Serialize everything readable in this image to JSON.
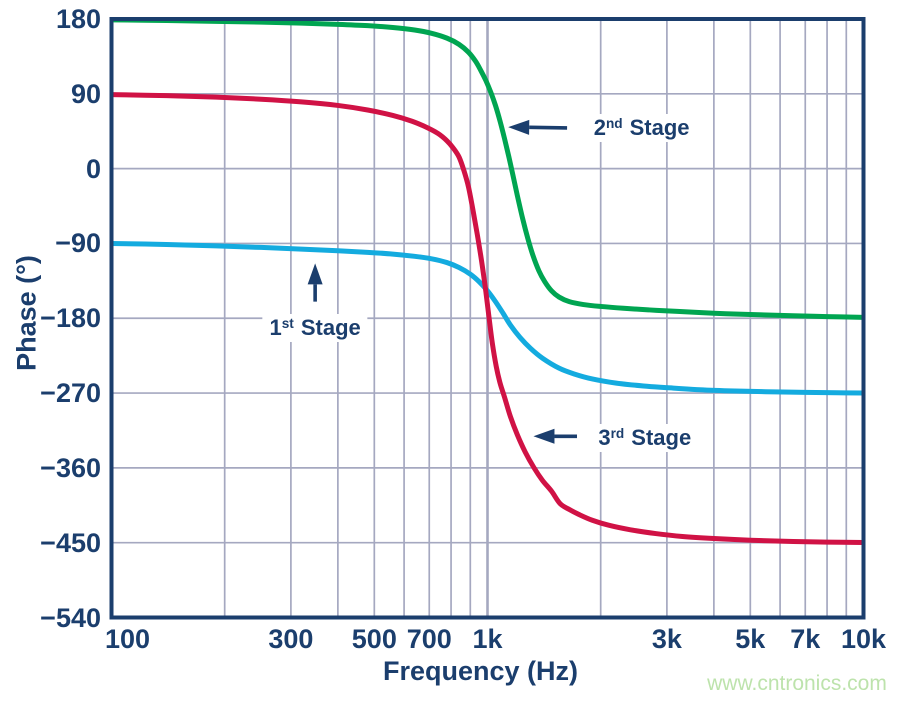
{
  "chart_data": {
    "type": "line",
    "title": "",
    "xlabel": "Frequency (Hz)",
    "ylabel": "Phase (°)",
    "x_scale": "log",
    "x_range": [
      100,
      10000
    ],
    "y_range": [
      -540,
      180
    ],
    "grid": true,
    "legend_position": "none",
    "x_ticks": [
      {
        "value": 100,
        "label": "100",
        "dx": 16
      },
      {
        "value": 300,
        "label": "300",
        "dx": 0
      },
      {
        "value": 500,
        "label": "500",
        "dx": 0
      },
      {
        "value": 700,
        "label": "700",
        "dx": 0
      },
      {
        "value": 1000,
        "label": "1k",
        "dx": 0
      },
      {
        "value": 3000,
        "label": "3k",
        "dx": 0
      },
      {
        "value": 5000,
        "label": "5k",
        "dx": 0
      },
      {
        "value": 7000,
        "label": "7k",
        "dx": 0
      },
      {
        "value": 10000,
        "label": "10k",
        "dx": 0
      }
    ],
    "y_ticks": [
      {
        "value": 180,
        "label": "180"
      },
      {
        "value": 90,
        "label": "90"
      },
      {
        "value": 0,
        "label": "0"
      },
      {
        "value": -90,
        "label": "−90"
      },
      {
        "value": -180,
        "label": "−180"
      },
      {
        "value": -270,
        "label": "−270"
      },
      {
        "value": -360,
        "label": "−360"
      },
      {
        "value": -450,
        "label": "−450"
      },
      {
        "value": -540,
        "label": "−540"
      }
    ],
    "x_grid_minor": [
      200,
      300,
      400,
      500,
      600,
      700,
      800,
      900,
      2000,
      3000,
      4000,
      5000,
      6000,
      7000,
      8000,
      9000
    ],
    "x_grid_major": [
      1000
    ],
    "y_grid": [
      90,
      0,
      -90,
      -180,
      -270,
      -360,
      -450
    ],
    "colors": {
      "axis": "#1B3E6D",
      "grid": "#A5A8C0",
      "stage1": "#14ABDF",
      "stage2": "#00A551",
      "stage3": "#D01245"
    },
    "series": [
      {
        "name": "1st Stage",
        "color": "#14ABDF",
        "points": [
          [
            100,
            -90
          ],
          [
            140,
            -91.3
          ],
          [
            190,
            -93
          ],
          [
            250,
            -94.8
          ],
          [
            320,
            -96.8
          ],
          [
            400,
            -98.8
          ],
          [
            480,
            -100.7
          ],
          [
            560,
            -102.8
          ],
          [
            640,
            -105.5
          ],
          [
            710,
            -108.5
          ],
          [
            780,
            -113
          ],
          [
            840,
            -119
          ],
          [
            900,
            -127
          ],
          [
            950,
            -136
          ],
          [
            1000,
            -147
          ],
          [
            1050,
            -160
          ],
          [
            1100,
            -174
          ],
          [
            1150,
            -188
          ],
          [
            1220,
            -203
          ],
          [
            1300,
            -216
          ],
          [
            1400,
            -228
          ],
          [
            1550,
            -240
          ],
          [
            1700,
            -247
          ],
          [
            1900,
            -253
          ],
          [
            2200,
            -258
          ],
          [
            2600,
            -261.5
          ],
          [
            3000,
            -263.5
          ],
          [
            3600,
            -265.8
          ],
          [
            4400,
            -267.3
          ],
          [
            5500,
            -268.4
          ],
          [
            7000,
            -269.1
          ],
          [
            8500,
            -269.6
          ],
          [
            10000,
            -270
          ]
        ]
      },
      {
        "name": "2nd Stage",
        "color": "#00A551",
        "points": [
          [
            100,
            179
          ],
          [
            140,
            178.2
          ],
          [
            190,
            177.2
          ],
          [
            250,
            176.2
          ],
          [
            320,
            175
          ],
          [
            400,
            173.6
          ],
          [
            480,
            172
          ],
          [
            560,
            169.8
          ],
          [
            640,
            166.8
          ],
          [
            710,
            162.8
          ],
          [
            780,
            157
          ],
          [
            840,
            149.5
          ],
          [
            890,
            140
          ],
          [
            930,
            129
          ],
          [
            960,
            118
          ],
          [
            990,
            106
          ],
          [
            1020,
            92
          ],
          [
            1050,
            76
          ],
          [
            1080,
            57
          ],
          [
            1110,
            36
          ],
          [
            1140,
            14
          ],
          [
            1170,
            -9
          ],
          [
            1200,
            -32
          ],
          [
            1240,
            -60
          ],
          [
            1280,
            -84
          ],
          [
            1320,
            -104
          ],
          [
            1370,
            -123
          ],
          [
            1420,
            -136
          ],
          [
            1480,
            -147
          ],
          [
            1550,
            -154.5
          ],
          [
            1650,
            -160
          ],
          [
            1800,
            -163.5
          ],
          [
            2000,
            -165.8
          ],
          [
            2300,
            -168
          ],
          [
            2700,
            -170
          ],
          [
            3200,
            -171.8
          ],
          [
            4000,
            -174
          ],
          [
            5000,
            -175.5
          ],
          [
            6500,
            -177
          ],
          [
            8000,
            -178
          ],
          [
            10000,
            -179
          ]
        ]
      },
      {
        "name": "3rd Stage",
        "color": "#D01245",
        "points": [
          [
            100,
            89
          ],
          [
            140,
            87.8
          ],
          [
            190,
            86
          ],
          [
            250,
            83.5
          ],
          [
            320,
            80.3
          ],
          [
            400,
            76
          ],
          [
            480,
            70.5
          ],
          [
            560,
            64
          ],
          [
            630,
            57
          ],
          [
            690,
            49.5
          ],
          [
            740,
            42
          ],
          [
            780,
            33.5
          ],
          [
            810,
            25
          ],
          [
            840,
            14
          ],
          [
            865,
            -2
          ],
          [
            890,
            -22
          ],
          [
            915,
            -50
          ],
          [
            940,
            -80
          ],
          [
            965,
            -112
          ],
          [
            990,
            -148
          ],
          [
            1010,
            -180
          ],
          [
            1030,
            -210
          ],
          [
            1055,
            -238
          ],
          [
            1080,
            -258
          ],
          [
            1110,
            -275
          ],
          [
            1150,
            -298
          ],
          [
            1200,
            -320
          ],
          [
            1260,
            -341
          ],
          [
            1330,
            -360
          ],
          [
            1400,
            -375
          ],
          [
            1480,
            -388
          ],
          [
            1560,
            -403
          ],
          [
            1650,
            -410
          ],
          [
            1750,
            -416
          ],
          [
            1900,
            -423
          ],
          [
            2100,
            -429
          ],
          [
            2400,
            -434.5
          ],
          [
            2800,
            -439
          ],
          [
            3300,
            -442.5
          ],
          [
            4000,
            -445
          ],
          [
            5000,
            -447
          ],
          [
            6500,
            -448.5
          ],
          [
            8000,
            -449.3
          ],
          [
            10000,
            -449.8
          ]
        ]
      }
    ],
    "annotations": [
      {
        "id": "1st-stage",
        "num": "1",
        "sup": "st",
        "word": "Stage",
        "text_pos": [
          348,
          -192
        ],
        "arrow_from": [
          348,
          -160
        ],
        "arrow_to": [
          348,
          -114
        ]
      },
      {
        "id": "2nd-stage",
        "num": "2",
        "sup": "nd",
        "word": "Stage",
        "text_pos": [
          2570,
          49
        ],
        "arrow_from": [
          1628,
          49
        ],
        "arrow_to": [
          1135,
          50
        ]
      },
      {
        "id": "3rd-stage",
        "num": "3",
        "sup": "rd",
        "word": "Stage",
        "text_pos": [
          2620,
          -324
        ],
        "arrow_from": [
          1730,
          -322
        ],
        "arrow_to": [
          1325,
          -322
        ]
      }
    ]
  },
  "watermark": {
    "text": "www.cntronics.com",
    "color": "#BDE3AC"
  }
}
